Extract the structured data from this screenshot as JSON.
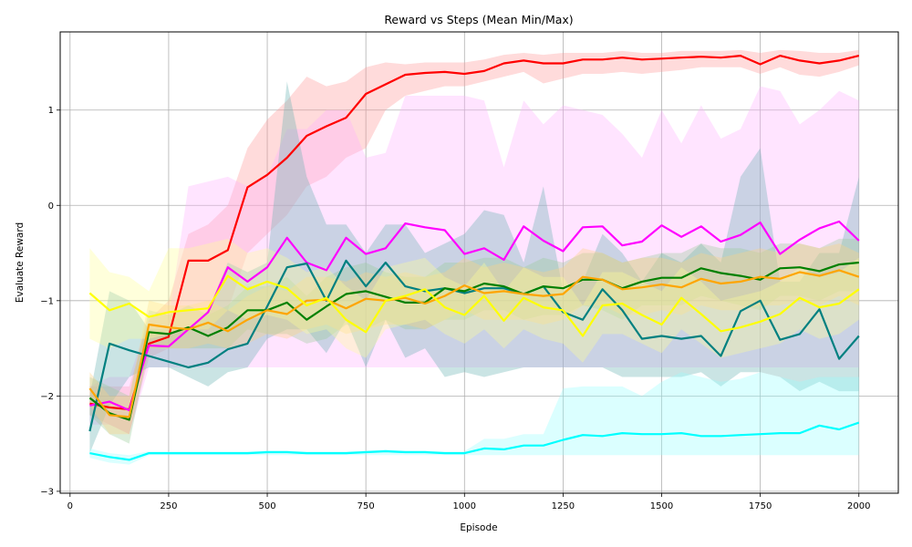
{
  "chart_data": {
    "type": "line",
    "title": "Reward vs Steps (Mean Min/Max)",
    "xlabel": "Episode",
    "ylabel": "Evaluate Reward",
    "xlim": [
      -25,
      2100
    ],
    "ylim": [
      -3.02,
      1.82
    ],
    "xticks": [
      0,
      250,
      500,
      750,
      1000,
      1250,
      1500,
      1750,
      2000
    ],
    "yticks": [
      -3,
      -2,
      -1,
      0,
      1
    ],
    "grid": true,
    "x": [
      50,
      100,
      150,
      200,
      250,
      300,
      350,
      400,
      450,
      500,
      550,
      600,
      650,
      700,
      750,
      800,
      850,
      900,
      950,
      1000,
      1050,
      1100,
      1150,
      1200,
      1250,
      1300,
      1350,
      1400,
      1450,
      1500,
      1550,
      1600,
      1650,
      1700,
      1750,
      1800,
      1850,
      1900,
      1950,
      2000
    ],
    "series": [
      {
        "name": "red",
        "color": "#ff0000",
        "band_color": "#ff9999",
        "mean": [
          -2.08,
          -2.12,
          -2.14,
          -1.45,
          -1.38,
          -0.58,
          -0.58,
          -0.47,
          0.19,
          0.32,
          0.5,
          0.73,
          0.83,
          0.92,
          1.17,
          1.27,
          1.37,
          1.39,
          1.4,
          1.38,
          1.41,
          1.49,
          1.52,
          1.49,
          1.49,
          1.53,
          1.53,
          1.55,
          1.53,
          1.54,
          1.55,
          1.56,
          1.55,
          1.57,
          1.48,
          1.57,
          1.52,
          1.49,
          1.52,
          1.57
        ],
        "min": [
          -2.2,
          -2.3,
          -2.4,
          -1.6,
          -1.5,
          -1.3,
          -1.3,
          -1.1,
          -0.5,
          -0.3,
          -0.1,
          0.2,
          0.3,
          0.5,
          0.6,
          1.0,
          1.15,
          1.2,
          1.25,
          1.25,
          1.3,
          1.35,
          1.4,
          1.28,
          1.33,
          1.38,
          1.38,
          1.4,
          1.38,
          1.4,
          1.42,
          1.45,
          1.45,
          1.45,
          1.38,
          1.45,
          1.37,
          1.35,
          1.4,
          1.47
        ],
        "max": [
          -1.9,
          -1.9,
          -1.9,
          -1.2,
          -1.0,
          -0.3,
          -0.2,
          0.0,
          0.6,
          0.9,
          1.1,
          1.35,
          1.25,
          1.3,
          1.45,
          1.5,
          1.48,
          1.5,
          1.5,
          1.5,
          1.53,
          1.58,
          1.6,
          1.58,
          1.6,
          1.6,
          1.6,
          1.62,
          1.6,
          1.6,
          1.62,
          1.62,
          1.62,
          1.63,
          1.6,
          1.63,
          1.62,
          1.6,
          1.6,
          1.63
        ]
      },
      {
        "name": "magenta",
        "color": "#ff00ff",
        "band_color": "#ffb3ff",
        "mean": [
          -2.1,
          -2.06,
          -2.15,
          -1.47,
          -1.48,
          -1.3,
          -1.12,
          -0.65,
          -0.8,
          -0.65,
          -0.34,
          -0.6,
          -0.68,
          -0.34,
          -0.51,
          -0.45,
          -0.19,
          -0.23,
          -0.26,
          -0.51,
          -0.45,
          -0.57,
          -0.22,
          -0.37,
          -0.48,
          -0.23,
          -0.22,
          -0.42,
          -0.38,
          -0.21,
          -0.33,
          -0.22,
          -0.38,
          -0.31,
          -0.18,
          -0.51,
          -0.36,
          -0.24,
          -0.17,
          -0.37
        ],
        "min": [
          -2.3,
          -2.3,
          -2.4,
          -1.7,
          -1.7,
          -1.7,
          -1.7,
          -1.7,
          -1.7,
          -1.7,
          -1.7,
          -1.7,
          -1.7,
          -1.7,
          -1.7,
          -1.7,
          -1.7,
          -1.7,
          -1.7,
          -1.7,
          -1.7,
          -1.7,
          -1.7,
          -1.7,
          -1.7,
          -1.7,
          -1.7,
          -1.7,
          -1.7,
          -1.7,
          -1.7,
          -1.7,
          -1.7,
          -1.7,
          -1.7,
          -1.7,
          -1.7,
          -1.7,
          -1.7,
          -1.7
        ],
        "max": [
          -1.9,
          -1.8,
          -1.8,
          -1.2,
          -1.2,
          0.2,
          0.25,
          0.3,
          0.2,
          0.3,
          0.8,
          0.8,
          1.0,
          1.0,
          0.5,
          0.55,
          1.15,
          1.15,
          1.15,
          1.15,
          1.1,
          0.4,
          1.1,
          0.85,
          1.05,
          1.0,
          0.95,
          0.75,
          0.5,
          1.0,
          0.65,
          1.05,
          0.7,
          0.8,
          1.25,
          1.2,
          0.85,
          1.0,
          1.2,
          1.1
        ]
      },
      {
        "name": "teal",
        "color": "#008080",
        "band_color": "#66b3b3",
        "mean": [
          -2.37,
          -1.45,
          -1.52,
          -1.58,
          -1.64,
          -1.7,
          -1.65,
          -1.51,
          -1.45,
          -1.06,
          -0.65,
          -0.61,
          -1.0,
          -0.58,
          -0.85,
          -0.6,
          -0.85,
          -0.9,
          -0.87,
          -0.92,
          -0.87,
          -0.87,
          -0.93,
          -0.85,
          -1.12,
          -1.2,
          -0.88,
          -1.1,
          -1.4,
          -1.37,
          -1.4,
          -1.37,
          -1.58,
          -1.11,
          -1.0,
          -1.41,
          -1.35,
          -1.09,
          -1.61,
          -1.37
        ],
        "min": [
          -2.6,
          -2.1,
          -1.8,
          -1.7,
          -1.7,
          -1.8,
          -1.9,
          -1.75,
          -1.7,
          -1.4,
          -1.3,
          -1.3,
          -1.55,
          -1.2,
          -1.7,
          -1.2,
          -1.6,
          -1.5,
          -1.8,
          -1.75,
          -1.8,
          -1.75,
          -1.7,
          -1.7,
          -1.7,
          -1.7,
          -1.7,
          -1.8,
          -1.8,
          -1.8,
          -1.8,
          -1.75,
          -1.9,
          -1.75,
          -1.75,
          -1.8,
          -1.95,
          -1.85,
          -1.95,
          -1.95
        ],
        "max": [
          -2.0,
          -0.9,
          -1.0,
          -1.3,
          -1.3,
          -1.3,
          -1.1,
          -0.6,
          -0.7,
          -0.6,
          1.3,
          0.3,
          -0.2,
          -0.2,
          -0.5,
          -0.2,
          -0.2,
          -0.5,
          -0.4,
          -0.3,
          -0.05,
          -0.1,
          -0.6,
          0.2,
          -0.9,
          -0.8,
          -0.3,
          -0.5,
          -0.8,
          -0.5,
          -0.6,
          -0.4,
          -0.6,
          0.3,
          0.6,
          -0.8,
          -0.8,
          -0.5,
          -0.5,
          0.3
        ]
      },
      {
        "name": "green",
        "color": "#008000",
        "band_color": "#99cc99",
        "mean": [
          -2.02,
          -2.18,
          -2.25,
          -1.33,
          -1.35,
          -1.28,
          -1.37,
          -1.28,
          -1.1,
          -1.1,
          -1.02,
          -1.2,
          -1.06,
          -0.93,
          -0.9,
          -0.96,
          -1.02,
          -1.02,
          -0.87,
          -0.9,
          -0.82,
          -0.85,
          -0.93,
          -0.85,
          -0.87,
          -0.78,
          -0.78,
          -0.87,
          -0.8,
          -0.76,
          -0.76,
          -0.66,
          -0.71,
          -0.74,
          -0.78,
          -0.66,
          -0.65,
          -0.69,
          -0.62,
          -0.6
        ],
        "min": [
          -2.2,
          -2.4,
          -2.5,
          -1.5,
          -1.5,
          -1.5,
          -1.5,
          -1.5,
          -1.3,
          -1.35,
          -1.35,
          -1.45,
          -1.4,
          -1.25,
          -1.3,
          -1.2,
          -1.3,
          -1.3,
          -1.2,
          -1.2,
          -1.1,
          -1.1,
          -1.2,
          -1.15,
          -1.15,
          -1.05,
          -1.1,
          -1.2,
          -1.05,
          -1.05,
          -1.05,
          -0.95,
          -1.0,
          -1.05,
          -1.1,
          -0.95,
          -0.95,
          -1.0,
          -0.9,
          -0.9
        ],
        "max": [
          -1.8,
          -1.9,
          -2.0,
          -1.1,
          -1.15,
          -1.05,
          -1.15,
          -1.05,
          -0.85,
          -0.85,
          -0.75,
          -0.95,
          -0.75,
          -0.65,
          -0.6,
          -0.7,
          -0.75,
          -0.75,
          -0.6,
          -0.6,
          -0.55,
          -0.55,
          -0.65,
          -0.55,
          -0.6,
          -0.5,
          -0.5,
          -0.6,
          -0.55,
          -0.5,
          -0.5,
          -0.4,
          -0.45,
          -0.45,
          -0.5,
          -0.4,
          -0.4,
          -0.45,
          -0.35,
          -0.35
        ]
      },
      {
        "name": "orange",
        "color": "#ffa500",
        "band_color": "#ffd280",
        "mean": [
          -1.92,
          -2.2,
          -2.22,
          -1.25,
          -1.28,
          -1.3,
          -1.23,
          -1.32,
          -1.2,
          -1.1,
          -1.14,
          -1.0,
          -0.99,
          -1.08,
          -0.98,
          -1.0,
          -0.97,
          -1.03,
          -0.95,
          -0.84,
          -0.92,
          -0.9,
          -0.93,
          -0.95,
          -0.93,
          -0.75,
          -0.78,
          -0.88,
          -0.86,
          -0.83,
          -0.86,
          -0.77,
          -0.82,
          -0.8,
          -0.75,
          -0.77,
          -0.7,
          -0.74,
          -0.68,
          -0.75
        ],
        "min": [
          -2.1,
          -2.4,
          -2.4,
          -1.5,
          -1.5,
          -1.5,
          -1.45,
          -1.5,
          -1.45,
          -1.35,
          -1.4,
          -1.3,
          -1.25,
          -1.35,
          -1.3,
          -1.25,
          -1.25,
          -1.3,
          -1.2,
          -1.1,
          -1.2,
          -1.2,
          -1.2,
          -1.25,
          -1.2,
          -1.05,
          -1.05,
          -1.15,
          -1.15,
          -1.1,
          -1.15,
          -1.05,
          -1.1,
          -1.1,
          -1.05,
          -1.05,
          -1.0,
          -1.05,
          -0.95,
          -1.05
        ],
        "max": [
          -1.75,
          -2.0,
          -2.0,
          -1.0,
          -1.05,
          -1.05,
          -1.0,
          -1.1,
          -0.95,
          -0.85,
          -0.9,
          -0.75,
          -0.75,
          -0.8,
          -0.7,
          -0.75,
          -0.7,
          -0.75,
          -0.7,
          -0.55,
          -0.65,
          -0.6,
          -0.65,
          -0.7,
          -0.65,
          -0.45,
          -0.5,
          -0.6,
          -0.55,
          -0.55,
          -0.6,
          -0.5,
          -0.55,
          -0.5,
          -0.45,
          -0.5,
          -0.4,
          -0.45,
          -0.4,
          -0.5
        ]
      },
      {
        "name": "yellow",
        "color": "#ffff00",
        "band_color": "#ffff99",
        "mean": [
          -0.92,
          -1.1,
          -1.03,
          -1.17,
          -1.12,
          -1.1,
          -1.08,
          -0.74,
          -0.88,
          -0.8,
          -0.87,
          -1.05,
          -0.97,
          -1.2,
          -1.33,
          -1.0,
          -0.95,
          -0.88,
          -1.07,
          -1.15,
          -0.95,
          -1.21,
          -0.97,
          -1.07,
          -1.1,
          -1.37,
          -1.05,
          -1.03,
          -1.15,
          -1.25,
          -0.97,
          -1.14,
          -1.32,
          -1.28,
          -1.22,
          -1.14,
          -0.97,
          -1.07,
          -1.03,
          -0.88
        ],
        "min": [
          -1.4,
          -1.5,
          -1.4,
          -1.4,
          -1.35,
          -1.3,
          -1.3,
          -1.1,
          -1.2,
          -1.15,
          -1.2,
          -1.35,
          -1.3,
          -1.5,
          -1.6,
          -1.3,
          -1.25,
          -1.2,
          -1.35,
          -1.45,
          -1.3,
          -1.5,
          -1.3,
          -1.4,
          -1.45,
          -1.65,
          -1.35,
          -1.35,
          -1.45,
          -1.55,
          -1.3,
          -1.45,
          -1.6,
          -1.55,
          -1.5,
          -1.45,
          -1.3,
          -1.4,
          -1.35,
          -1.2
        ],
        "max": [
          -0.45,
          -0.7,
          -0.75,
          -0.9,
          -0.45,
          -0.45,
          -0.4,
          -0.35,
          -0.5,
          -0.45,
          -0.55,
          -0.7,
          -0.65,
          -0.85,
          -1.0,
          -0.65,
          -0.6,
          -0.55,
          -0.75,
          -0.85,
          -0.6,
          -0.9,
          -0.65,
          -0.75,
          -0.75,
          -1.05,
          -0.7,
          -0.7,
          -0.8,
          -0.9,
          -0.65,
          -0.8,
          -1.0,
          -0.95,
          -0.9,
          -0.8,
          -0.65,
          -0.75,
          -0.7,
          -0.55
        ]
      },
      {
        "name": "cyan",
        "color": "#00ffff",
        "band_color": "#99ffff",
        "mean": [
          -2.6,
          -2.64,
          -2.67,
          -2.6,
          -2.6,
          -2.6,
          -2.6,
          -2.6,
          -2.6,
          -2.59,
          -2.59,
          -2.6,
          -2.6,
          -2.6,
          -2.59,
          -2.58,
          -2.59,
          -2.59,
          -2.6,
          -2.6,
          -2.55,
          -2.56,
          -2.52,
          -2.52,
          -2.46,
          -2.41,
          -2.42,
          -2.39,
          -2.4,
          -2.4,
          -2.39,
          -2.42,
          -2.42,
          -2.41,
          -2.4,
          -2.39,
          -2.39,
          -2.31,
          -2.35,
          -2.28
        ],
        "min": [
          -2.65,
          -2.7,
          -2.72,
          -2.62,
          -2.62,
          -2.62,
          -2.62,
          -2.62,
          -2.62,
          -2.62,
          -2.62,
          -2.62,
          -2.62,
          -2.62,
          -2.62,
          -2.62,
          -2.62,
          -2.62,
          -2.62,
          -2.62,
          -2.62,
          -2.62,
          -2.62,
          -2.62,
          -2.62,
          -2.62,
          -2.62,
          -2.62,
          -2.62,
          -2.62,
          -2.62,
          -2.62,
          -2.62,
          -2.62,
          -2.62,
          -2.62,
          -2.62,
          -2.62,
          -2.62,
          -2.62
        ],
        "max": [
          -2.55,
          -2.6,
          -2.62,
          -2.58,
          -2.58,
          -2.58,
          -2.58,
          -2.58,
          -2.58,
          -2.57,
          -2.57,
          -2.58,
          -2.58,
          -2.58,
          -2.57,
          -2.56,
          -2.57,
          -2.57,
          -2.58,
          -2.58,
          -2.45,
          -2.45,
          -2.4,
          -2.4,
          -1.92,
          -1.9,
          -1.9,
          -1.9,
          -2.0,
          -1.85,
          -1.75,
          -1.8,
          -1.85,
          -1.82,
          -1.75,
          -1.8,
          -1.85,
          -1.8,
          -1.8,
          -1.8
        ]
      }
    ]
  }
}
